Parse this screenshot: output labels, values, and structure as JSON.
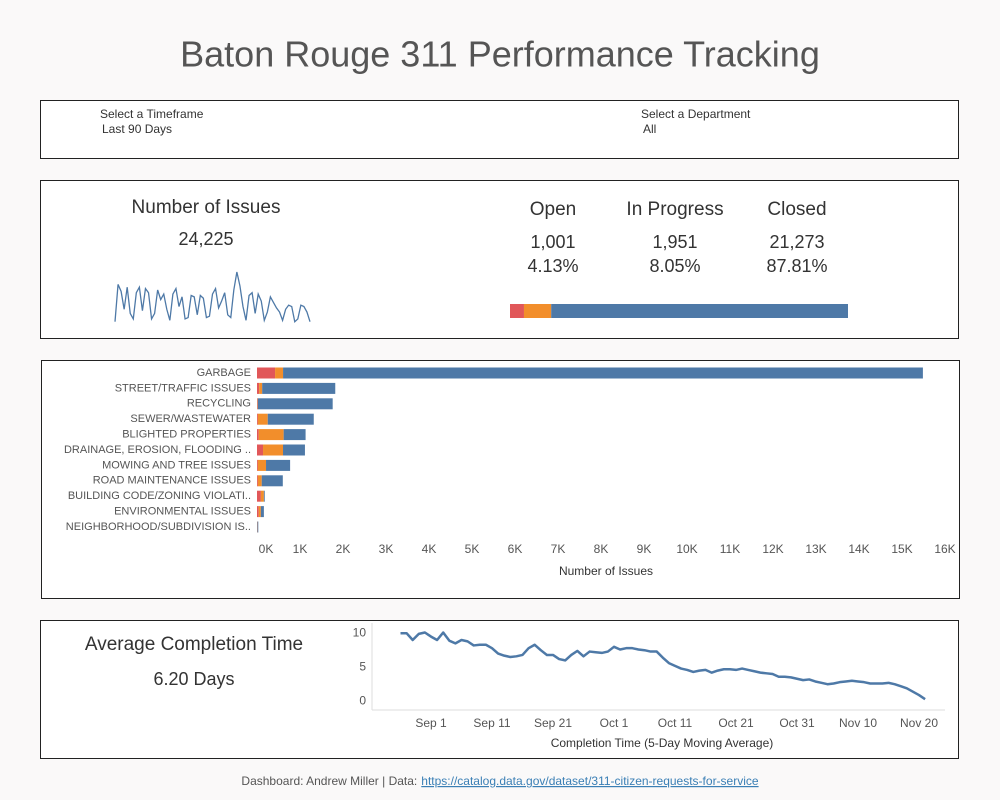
{
  "header": {
    "title": "Baton Rouge 311  Performance Tracking"
  },
  "filters": [
    {
      "label": "Select a Timeframe",
      "value": "Last 90 Days"
    },
    {
      "label": "Select a Department",
      "value": "All"
    }
  ],
  "kpis": {
    "issues_title": "Number of Issues",
    "issues_total": "24,225",
    "completion_title": "Average Completion Time",
    "completion_value": "6.20 Days"
  },
  "footer": {
    "credit": "Dashboard: Andrew Miller  |  Data:",
    "link": "https://catalog.data.gov/dataset/311-citizen-requests-for-service"
  },
  "chart_data": [
    {
      "type": "sparkline",
      "color": "#4e79a7",
      "values": [
        60,
        330,
        280,
        150,
        310,
        120,
        80,
        270,
        310,
        140,
        300,
        270,
        80,
        120,
        290,
        220,
        260,
        150,
        70,
        260,
        300,
        170,
        240,
        80,
        90,
        250,
        240,
        110,
        250,
        230,
        90,
        100,
        260,
        300,
        160,
        210,
        270,
        110,
        90,
        290,
        420,
        320,
        170,
        70,
        250,
        270,
        120,
        260,
        210,
        70,
        130,
        240,
        200,
        160,
        130,
        70,
        150,
        180,
        170,
        60,
        80,
        180,
        170,
        130,
        60
      ]
    },
    {
      "type": "stacked-bar",
      "series": [
        {
          "name": "Open",
          "color": "#e15759",
          "values": [
            1001
          ],
          "value_labels": [
            "1,001"
          ],
          "percent_labels": [
            "4.13%"
          ]
        },
        {
          "name": "In Progress",
          "color": "#f28e2b",
          "values": [
            1951
          ],
          "value_labels": [
            "1,951"
          ],
          "percent_labels": [
            "8.05%"
          ]
        },
        {
          "name": "Closed",
          "color": "#4e79a7",
          "values": [
            21273
          ],
          "value_labels": [
            "21,273"
          ],
          "percent_labels": [
            "87.81%"
          ]
        }
      ]
    },
    {
      "type": "hbar-stacked",
      "xlabel": "Number of Issues",
      "categories": [
        "GARBAGE",
        "STREET/TRAFFIC ISSUES",
        "RECYCLING",
        "SEWER/WASTEWATER",
        "BLIGHTED PROPERTIES",
        "DRAINAGE, EROSION, FLOODING ..",
        "MOWING AND TREE ISSUES",
        "ROAD MAINTENANCE ISSUES",
        "BUILDING CODE/ZONING VIOLATI..",
        "ENVIRONMENTAL ISSUES",
        "NEIGHBORHOOD/SUBDIVISION IS.."
      ],
      "series": [
        {
          "color": "#e15759",
          "values": [
            420,
            50,
            10,
            20,
            40,
            140,
            20,
            20,
            90,
            40,
            5
          ]
        },
        {
          "color": "#f28e2b",
          "values": [
            186,
            70,
            10,
            230,
            580,
            465,
            190,
            90,
            70,
            50,
            5
          ]
        },
        {
          "color": "#4e79a7",
          "values": [
            14880,
            1700,
            1740,
            1070,
            510,
            510,
            560,
            490,
            20,
            70,
            20
          ]
        }
      ],
      "xlim": [
        0,
        16000
      ],
      "xticks": [
        {
          "value": 0,
          "label": "0K"
        },
        {
          "value": 1000,
          "label": "1K"
        },
        {
          "value": 2000,
          "label": "2K"
        },
        {
          "value": 3000,
          "label": "3K"
        },
        {
          "value": 4000,
          "label": "4K"
        },
        {
          "value": 5000,
          "label": "5K"
        },
        {
          "value": 6000,
          "label": "6K"
        },
        {
          "value": 7000,
          "label": "7K"
        },
        {
          "value": 8000,
          "label": "8K"
        },
        {
          "value": 9000,
          "label": "9K"
        },
        {
          "value": 10000,
          "label": "10K"
        },
        {
          "value": 11000,
          "label": "11K"
        },
        {
          "value": 12000,
          "label": "12K"
        },
        {
          "value": 13000,
          "label": "13K"
        },
        {
          "value": 14000,
          "label": "14K"
        },
        {
          "value": 15000,
          "label": "15K"
        },
        {
          "value": 16000,
          "label": "16K"
        }
      ]
    },
    {
      "type": "line",
      "color": "#4e79a7",
      "xlabel": "Completion Time (5-Day Moving Average)",
      "x": [
        "Aug 27",
        "Aug 28",
        "Aug 29",
        "Aug 30",
        "Aug 31",
        "Sep 1",
        "Sep 2",
        "Sep 3",
        "Sep 4",
        "Sep 5",
        "Sep 6",
        "Sep 7",
        "Sep 8",
        "Sep 9",
        "Sep 10",
        "Sep 11",
        "Sep 12",
        "Sep 13",
        "Sep 14",
        "Sep 15",
        "Sep 16",
        "Sep 17",
        "Sep 18",
        "Sep 19",
        "Sep 20",
        "Sep 21",
        "Sep 22",
        "Sep 23",
        "Sep 24",
        "Sep 25",
        "Sep 26",
        "Sep 27",
        "Sep 28",
        "Sep 29",
        "Sep 30",
        "Oct 1",
        "Oct 2",
        "Oct 3",
        "Oct 4",
        "Oct 5",
        "Oct 6",
        "Oct 7",
        "Oct 8",
        "Oct 9",
        "Oct 10",
        "Oct 11",
        "Oct 12",
        "Oct 13",
        "Oct 14",
        "Oct 15",
        "Oct 16",
        "Oct 17",
        "Oct 18",
        "Oct 19",
        "Oct 20",
        "Oct 21",
        "Oct 22",
        "Oct 23",
        "Oct 24",
        "Oct 25",
        "Oct 26",
        "Oct 27",
        "Oct 28",
        "Oct 29",
        "Oct 30",
        "Oct 31",
        "Nov 1",
        "Nov 2",
        "Nov 3",
        "Nov 4",
        "Nov 5",
        "Nov 6",
        "Nov 7",
        "Nov 8",
        "Nov 9",
        "Nov 10",
        "Nov 11",
        "Nov 12",
        "Nov 13",
        "Nov 14",
        "Nov 15",
        "Nov 16",
        "Nov 17",
        "Nov 18",
        "Nov 19",
        "Nov 20",
        "Nov 21"
      ],
      "values": [
        10.0,
        10.0,
        9.0,
        9.9,
        10.1,
        9.5,
        9.0,
        10.1,
        8.9,
        8.5,
        9.0,
        8.8,
        8.2,
        8.3,
        8.3,
        7.8,
        7.0,
        6.7,
        6.5,
        6.6,
        6.8,
        7.8,
        8.3,
        7.5,
        6.8,
        6.8,
        6.2,
        6.0,
        6.8,
        7.4,
        6.6,
        7.3,
        7.2,
        7.1,
        7.3,
        8.0,
        7.6,
        7.8,
        7.8,
        7.6,
        7.5,
        7.3,
        7.3,
        6.4,
        5.6,
        5.2,
        4.8,
        4.6,
        4.3,
        4.5,
        4.6,
        4.2,
        4.5,
        4.7,
        4.7,
        4.6,
        4.8,
        4.6,
        4.4,
        4.2,
        4.1,
        4.0,
        3.6,
        3.6,
        3.5,
        3.3,
        3.1,
        3.2,
        2.9,
        2.7,
        2.5,
        2.6,
        2.8,
        2.9,
        3.0,
        2.9,
        2.8,
        2.6,
        2.6,
        2.6,
        2.7,
        2.5,
        2.2,
        1.9,
        1.4,
        0.9,
        0.3
      ],
      "ylim": [
        -1,
        11.5
      ],
      "yticks": [
        0,
        5,
        10
      ],
      "xticks": [
        {
          "value": 5,
          "label": "Sep 1"
        },
        {
          "value": 15,
          "label": "Sep 11"
        },
        {
          "value": 25,
          "label": "Sep 21"
        },
        {
          "value": 35,
          "label": "Oct 1"
        },
        {
          "value": 45,
          "label": "Oct 11"
        },
        {
          "value": 55,
          "label": "Oct 21"
        },
        {
          "value": 65,
          "label": "Oct 31"
        },
        {
          "value": 75,
          "label": "Nov 10"
        },
        {
          "value": 85,
          "label": "Nov 20"
        }
      ]
    }
  ]
}
